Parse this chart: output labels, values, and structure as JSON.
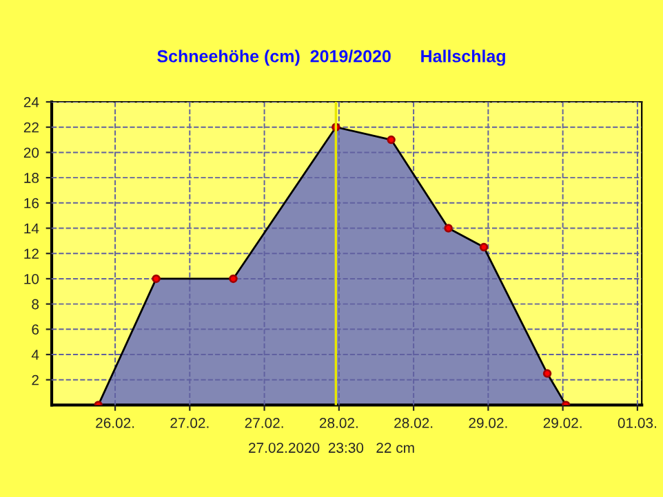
{
  "chart_data": {
    "type": "area",
    "title": "Schneehöhe (cm)  2019/2020      Hallschlag",
    "x": [
      "2020-02-26T09:18",
      "2020-02-26T18:36",
      "2020-02-27T07:00",
      "2020-02-27T23:30",
      "2020-02-28T08:24",
      "2020-02-28T17:36",
      "2020-02-28T23:18",
      "2020-02-29T09:30",
      "2020-02-29T12:30"
    ],
    "series": [
      {
        "color": "#6c72c0",
        "values": [
          0,
          10,
          10,
          22,
          21,
          14,
          12.5,
          2.5,
          0
        ]
      }
    ],
    "xlim": [
      "2020-02-26T01:48",
      "2020-03-01T00:42"
    ],
    "xticks": [
      {
        "value": "2020-02-26T12:00",
        "label": "26.02."
      },
      {
        "value": "2020-02-27T00:00",
        "label": "27.02."
      },
      {
        "value": "2020-02-27T12:00",
        "label": "27.02."
      },
      {
        "value": "2020-02-28T00:00",
        "label": "28.02."
      },
      {
        "value": "2020-02-28T12:00",
        "label": "28.02."
      },
      {
        "value": "2020-02-29T00:00",
        "label": "29.02."
      },
      {
        "value": "2020-02-29T12:00",
        "label": "29.02."
      },
      {
        "value": "2020-03-01T00:00",
        "label": "01.03."
      }
    ],
    "ylim": [
      0,
      24
    ],
    "yticks": [
      2,
      4,
      6,
      8,
      10,
      12,
      14,
      16,
      18,
      20,
      22,
      24
    ],
    "ref_lines": [
      {
        "axis": "x",
        "value": "2020-02-27T23:30",
        "color": "#e8e800"
      }
    ],
    "annotations": [
      "27.02.2020  23:30   22 cm"
    ],
    "grid": true,
    "marker": "circle",
    "line_style": "solid"
  }
}
